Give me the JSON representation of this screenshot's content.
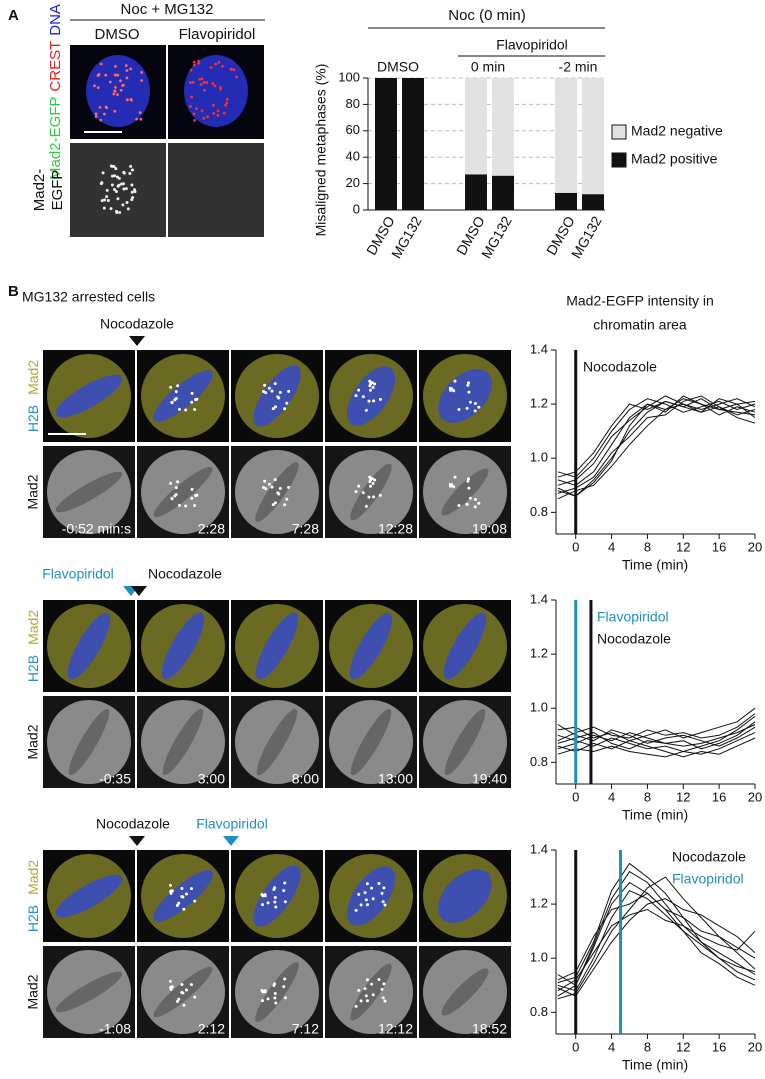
{
  "panel_a": {
    "label": "A",
    "header": "Noc + MG132",
    "columns": [
      "DMSO",
      "Flavopiridol"
    ],
    "row1_label": [
      "Mad2-EGFP",
      "CREST",
      "DNA"
    ],
    "row2_label": [
      "Mad2-",
      "EGFP"
    ]
  },
  "panel_b": {
    "label": "B",
    "title": "MG132 arrested cells",
    "plot_title": [
      "Mad2-EGFP intensity in",
      "chromatin area"
    ],
    "color_channels": [
      "H2B",
      "Mad2"
    ],
    "gray_channel": "Mad2",
    "rows": [
      {
        "markers": [
          {
            "text": "Nocodazole",
            "color": "#111111"
          }
        ],
        "times": [
          "-0:52 min:s",
          "2:28",
          "7:28",
          "12:28",
          "19:08"
        ]
      },
      {
        "markers": [
          {
            "text": "Flavopiridol",
            "color": "#1f8fc0"
          },
          {
            "text": "Nocodazole",
            "color": "#111111"
          }
        ],
        "times": [
          "-0:35",
          "3:00",
          "8:00",
          "13:00",
          "19:40"
        ]
      },
      {
        "markers": [
          {
            "text": "Nocodazole",
            "color": "#111111"
          },
          {
            "text": "Flavopiridol",
            "color": "#1f8fc0"
          }
        ],
        "times": [
          "-1:08",
          "2:12",
          "7:12",
          "12:12",
          "18:52"
        ]
      }
    ]
  },
  "chart_data": [
    {
      "type": "bar",
      "stacked": true,
      "header": "Noc (0 min)",
      "subheader": "Flavopiridol",
      "group_labels": [
        "DMSO",
        "0 min",
        "-2 min"
      ],
      "y_label": "Misaligned metaphases (%)",
      "categories": [
        "DMSO",
        "MG132",
        "DMSO",
        "MG132",
        "DMSO",
        "MG132"
      ],
      "series": [
        {
          "name": "Mad2 positive",
          "color": "#111111",
          "values": [
            100,
            100,
            27,
            26,
            13,
            12
          ]
        },
        {
          "name": "Mad2 negative",
          "color": "#e2e2e2",
          "values": [
            0,
            0,
            73,
            74,
            87,
            88
          ]
        }
      ],
      "ylim": [
        0,
        100
      ],
      "yticks": [
        0,
        20,
        40,
        60,
        80,
        100
      ],
      "grid": true
    },
    {
      "type": "line",
      "x_label": "Time (min)",
      "line_color": "#111111",
      "x": [
        -2,
        0,
        2,
        4,
        6,
        8,
        10,
        12,
        14,
        16,
        18,
        20
      ],
      "xlim": [
        -2.2,
        20
      ],
      "xticks": [
        0,
        4,
        8,
        12,
        16,
        20
      ],
      "ylim": [
        0.72,
        1.4
      ],
      "yticks": [
        0.8,
        {
          "value": 1.0,
          "label": "1.0"
        },
        1.2,
        1.4
      ],
      "events": [
        {
          "name": "Nocodazole",
          "x": 0,
          "color": "#111111"
        }
      ],
      "series": [
        {
          "values": [
            0.92,
            0.9,
            0.95,
            1.05,
            1.15,
            1.2,
            1.18,
            1.2,
            1.17,
            1.19,
            1.16,
            1.18
          ]
        },
        {
          "values": [
            0.88,
            0.86,
            0.92,
            1.0,
            1.1,
            1.17,
            1.21,
            1.19,
            1.22,
            1.18,
            1.2,
            1.15
          ]
        },
        {
          "values": [
            0.95,
            0.93,
            1.0,
            1.1,
            1.18,
            1.22,
            1.2,
            1.17,
            1.19,
            1.21,
            1.18,
            1.2
          ]
        },
        {
          "values": [
            0.85,
            0.88,
            0.9,
            0.97,
            1.05,
            1.12,
            1.18,
            1.22,
            1.2,
            1.16,
            1.19,
            1.17
          ]
        },
        {
          "values": [
            0.9,
            0.92,
            0.98,
            1.08,
            1.14,
            1.19,
            1.23,
            1.2,
            1.18,
            1.2,
            1.22,
            1.19
          ]
        },
        {
          "values": [
            0.87,
            0.89,
            0.93,
            1.02,
            1.08,
            1.15,
            1.16,
            1.21,
            1.23,
            1.19,
            1.15,
            1.13
          ]
        },
        {
          "values": [
            0.93,
            0.95,
            1.02,
            1.12,
            1.2,
            1.18,
            1.21,
            1.19,
            1.17,
            1.22,
            1.2,
            1.21
          ]
        },
        {
          "values": [
            0.89,
            0.86,
            0.91,
            0.99,
            1.12,
            1.2,
            1.17,
            1.23,
            1.2,
            1.18,
            1.17,
            1.16
          ]
        }
      ]
    },
    {
      "type": "line",
      "x_label": "Time (min)",
      "line_color": "#111111",
      "x": [
        -2,
        0,
        2,
        4,
        6,
        8,
        10,
        12,
        14,
        16,
        18,
        20
      ],
      "xlim": [
        -2.2,
        20
      ],
      "xticks": [
        0,
        4,
        8,
        12,
        16,
        20
      ],
      "ylim": [
        0.72,
        1.4
      ],
      "yticks": [
        0.8,
        {
          "value": 1.0,
          "label": "1.0"
        },
        1.2,
        1.4
      ],
      "events": [
        {
          "name": "Flavopiridol",
          "x": 0,
          "color": "#1f8fc0"
        },
        {
          "name": "Nocodazole",
          "x": 1.7,
          "color": "#111111"
        }
      ],
      "series": [
        {
          "values": [
            0.9,
            0.88,
            0.86,
            0.89,
            0.87,
            0.85,
            0.86,
            0.84,
            0.86,
            0.88,
            0.92,
            0.97
          ]
        },
        {
          "values": [
            0.85,
            0.87,
            0.9,
            0.88,
            0.91,
            0.89,
            0.87,
            0.88,
            0.85,
            0.87,
            0.9,
            0.95
          ]
        },
        {
          "values": [
            0.92,
            0.93,
            0.89,
            0.91,
            0.88,
            0.9,
            0.92,
            0.89,
            0.91,
            0.93,
            0.95,
            1.0
          ]
        },
        {
          "values": [
            0.83,
            0.85,
            0.84,
            0.86,
            0.84,
            0.83,
            0.82,
            0.84,
            0.83,
            0.85,
            0.88,
            0.91
          ]
        },
        {
          "values": [
            0.88,
            0.91,
            0.93,
            0.9,
            0.89,
            0.92,
            0.9,
            0.91,
            0.89,
            0.9,
            0.93,
            0.98
          ]
        },
        {
          "values": [
            0.86,
            0.84,
            0.87,
            0.85,
            0.88,
            0.86,
            0.84,
            0.82,
            0.84,
            0.83,
            0.86,
            0.89
          ]
        },
        {
          "values": [
            0.94,
            0.9,
            0.88,
            0.92,
            0.9,
            0.87,
            0.89,
            0.9,
            0.88,
            0.86,
            0.89,
            0.93
          ]
        },
        {
          "values": [
            0.87,
            0.89,
            0.91,
            0.87,
            0.85,
            0.88,
            0.87,
            0.86,
            0.87,
            0.89,
            0.91,
            0.94
          ]
        }
      ]
    },
    {
      "type": "line",
      "x_label": "Time (min)",
      "line_color": "#111111",
      "x": [
        -2,
        0,
        2,
        4,
        6,
        8,
        10,
        12,
        14,
        16,
        18,
        20
      ],
      "xlim": [
        -2.2,
        20
      ],
      "xticks": [
        0,
        4,
        8,
        12,
        16,
        20
      ],
      "ylim": [
        0.72,
        1.4
      ],
      "yticks": [
        0.8,
        {
          "value": 1.0,
          "label": "1.0"
        },
        1.2,
        1.4
      ],
      "events": [
        {
          "name": "Nocodazole",
          "x": 0,
          "color": "#111111"
        },
        {
          "name": "Flavopiridol",
          "x": 5,
          "color": "#1f8fc0"
        }
      ],
      "series": [
        {
          "values": [
            0.9,
            0.88,
            1.0,
            1.15,
            1.25,
            1.22,
            1.16,
            1.1,
            1.05,
            1.0,
            0.97,
            0.95
          ]
        },
        {
          "values": [
            0.86,
            0.9,
            1.05,
            1.22,
            1.32,
            1.28,
            1.2,
            1.12,
            1.06,
            1.02,
            0.98,
            0.94
          ]
        },
        {
          "values": [
            0.92,
            0.95,
            1.08,
            1.18,
            1.2,
            1.24,
            1.18,
            1.15,
            1.1,
            1.08,
            1.04,
            1.0
          ]
        },
        {
          "values": [
            0.85,
            0.87,
            0.98,
            1.1,
            1.18,
            1.26,
            1.3,
            1.22,
            1.15,
            1.08,
            1.02,
            0.96
          ]
        },
        {
          "values": [
            0.88,
            0.92,
            1.02,
            1.12,
            1.16,
            1.18,
            1.14,
            1.12,
            1.08,
            1.05,
            1.03,
            1.1
          ]
        },
        {
          "values": [
            0.94,
            0.9,
            1.04,
            1.2,
            1.28,
            1.24,
            1.18,
            1.1,
            1.02,
            0.98,
            0.93,
            0.9
          ]
        },
        {
          "values": [
            0.89,
            0.86,
            0.96,
            1.06,
            1.14,
            1.2,
            1.22,
            1.18,
            1.16,
            1.12,
            1.08,
            1.02
          ]
        },
        {
          "values": [
            0.91,
            0.93,
            1.06,
            1.25,
            1.35,
            1.3,
            1.24,
            1.15,
            1.06,
            1.0,
            0.95,
            0.92
          ]
        }
      ]
    }
  ]
}
